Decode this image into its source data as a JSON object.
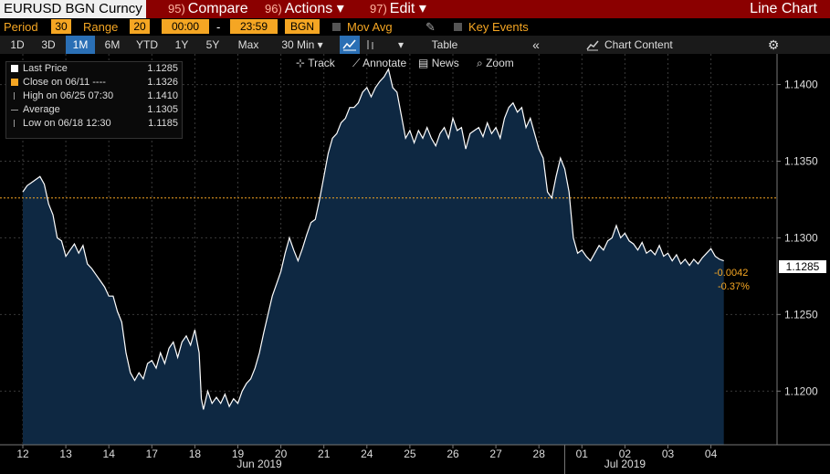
{
  "header": {
    "security": "EURUSD BGN Curncy",
    "compare": {
      "num": "95)",
      "label": "Compare"
    },
    "actions": {
      "num": "96)",
      "label": "Actions ▾"
    },
    "edit": {
      "num": "97)",
      "label": "Edit ▾"
    },
    "chart_type": "Line Chart"
  },
  "options": {
    "period_label": "Period",
    "period_value": "30",
    "range_label": "Range",
    "range_value": "20",
    "time_from": "00:00",
    "time_sep": "-",
    "time_to": "23:59",
    "source": "BGN",
    "mov_avg": "Mov Avg",
    "key_events": "Key Events"
  },
  "toolbar": {
    "ranges": [
      "1D",
      "3D",
      "1M",
      "6M",
      "YTD",
      "1Y",
      "5Y",
      "Max"
    ],
    "active_range": "1M",
    "interval": "30 Min ▾",
    "table_label": "Table",
    "collapse_icon": "«",
    "chart_content": "Chart Content",
    "gear_icon": "⚙"
  },
  "subtools": {
    "track": "Track",
    "annotate": "Annotate",
    "news": "News",
    "zoom": "Zoom"
  },
  "legend": [
    {
      "label": "Last Price",
      "value": "1.1285",
      "color": "#ffffff"
    },
    {
      "label": "Close on 06/11 ----",
      "value": "1.1326",
      "color": "#f5a623"
    },
    {
      "label": "High on 06/25 07:30",
      "value": "1.1410",
      "color": "#999999"
    },
    {
      "label": "Average",
      "value": "1.1305",
      "color": "#999999"
    },
    {
      "label": "Low on 06/18 12:30",
      "value": "1.1185",
      "color": "#999999"
    }
  ],
  "price_label": "1.1285",
  "change_abs": "-0.0042",
  "change_pct": "-0.37%",
  "chart_data": {
    "type": "area",
    "series_name": "Last Price",
    "ylim": [
      1.1165,
      1.142
    ],
    "yticks": [
      "1.1400",
      "1.1350",
      "1.1300",
      "1.1250",
      "1.1200"
    ],
    "ytick_values": [
      1.14,
      1.135,
      1.13,
      1.125,
      1.12
    ],
    "reference_line": 1.1326,
    "x_categories": [
      "12",
      "13",
      "14",
      "17",
      "18",
      "19",
      "20",
      "21",
      "24",
      "25",
      "26",
      "27",
      "28",
      "01",
      "02",
      "03",
      "04"
    ],
    "month_labels": [
      {
        "label": "Jun 2019",
        "at": 5.5
      },
      {
        "label": "Jul 2019",
        "at": 14
      }
    ],
    "month_divider_at": 12.6,
    "x_max": 16.6,
    "points": [
      [
        0,
        1.133
      ],
      [
        0.1,
        1.1334
      ],
      [
        0.2,
        1.1336
      ],
      [
        0.3,
        1.1338
      ],
      [
        0.4,
        1.134
      ],
      [
        0.5,
        1.1335
      ],
      [
        0.6,
        1.1322
      ],
      [
        0.7,
        1.1315
      ],
      [
        0.8,
        1.13
      ],
      [
        0.9,
        1.1298
      ],
      [
        1.0,
        1.1288
      ],
      [
        1.1,
        1.1292
      ],
      [
        1.2,
        1.1296
      ],
      [
        1.3,
        1.129
      ],
      [
        1.4,
        1.1295
      ],
      [
        1.5,
        1.1283
      ],
      [
        1.6,
        1.128
      ],
      [
        1.7,
        1.1276
      ],
      [
        1.8,
        1.1272
      ],
      [
        1.9,
        1.1268
      ],
      [
        2.0,
        1.1262
      ],
      [
        2.1,
        1.1262
      ],
      [
        2.2,
        1.1252
      ],
      [
        2.3,
        1.1245
      ],
      [
        2.4,
        1.1225
      ],
      [
        2.5,
        1.1212
      ],
      [
        2.6,
        1.1207
      ],
      [
        2.7,
        1.1212
      ],
      [
        2.8,
        1.1208
      ],
      [
        2.9,
        1.1218
      ],
      [
        3.0,
        1.122
      ],
      [
        3.1,
        1.1215
      ],
      [
        3.2,
        1.1225
      ],
      [
        3.3,
        1.1218
      ],
      [
        3.4,
        1.1228
      ],
      [
        3.5,
        1.1232
      ],
      [
        3.6,
        1.1222
      ],
      [
        3.7,
        1.1232
      ],
      [
        3.8,
        1.1236
      ],
      [
        3.9,
        1.123
      ],
      [
        4.0,
        1.124
      ],
      [
        4.1,
        1.1225
      ],
      [
        4.15,
        1.1195
      ],
      [
        4.2,
        1.1188
      ],
      [
        4.3,
        1.12
      ],
      [
        4.4,
        1.1192
      ],
      [
        4.5,
        1.1196
      ],
      [
        4.6,
        1.1192
      ],
      [
        4.7,
        1.1198
      ],
      [
        4.8,
        1.119
      ],
      [
        4.9,
        1.1195
      ],
      [
        5.0,
        1.1192
      ],
      [
        5.1,
        1.12
      ],
      [
        5.2,
        1.1205
      ],
      [
        5.3,
        1.1208
      ],
      [
        5.4,
        1.1215
      ],
      [
        5.5,
        1.1225
      ],
      [
        5.6,
        1.1238
      ],
      [
        5.7,
        1.125
      ],
      [
        5.8,
        1.1262
      ],
      [
        5.9,
        1.127
      ],
      [
        6.0,
        1.1278
      ],
      [
        6.1,
        1.129
      ],
      [
        6.2,
        1.13
      ],
      [
        6.3,
        1.1292
      ],
      [
        6.4,
        1.1285
      ],
      [
        6.5,
        1.1293
      ],
      [
        6.6,
        1.1302
      ],
      [
        6.7,
        1.131
      ],
      [
        6.8,
        1.1312
      ],
      [
        6.9,
        1.1325
      ],
      [
        7.0,
        1.134
      ],
      [
        7.1,
        1.1355
      ],
      [
        7.2,
        1.1365
      ],
      [
        7.3,
        1.1368
      ],
      [
        7.4,
        1.1375
      ],
      [
        7.5,
        1.1378
      ],
      [
        7.6,
        1.1385
      ],
      [
        7.7,
        1.1385
      ],
      [
        7.8,
        1.1388
      ],
      [
        7.9,
        1.1395
      ],
      [
        8.0,
        1.1398
      ],
      [
        8.1,
        1.1392
      ],
      [
        8.2,
        1.1398
      ],
      [
        8.3,
        1.1402
      ],
      [
        8.4,
        1.1405
      ],
      [
        8.5,
        1.141
      ],
      [
        8.6,
        1.1398
      ],
      [
        8.7,
        1.1395
      ],
      [
        8.8,
        1.138
      ],
      [
        8.9,
        1.1365
      ],
      [
        9.0,
        1.137
      ],
      [
        9.1,
        1.1362
      ],
      [
        9.2,
        1.137
      ],
      [
        9.3,
        1.1365
      ],
      [
        9.4,
        1.1372
      ],
      [
        9.5,
        1.1365
      ],
      [
        9.6,
        1.136
      ],
      [
        9.7,
        1.1368
      ],
      [
        9.8,
        1.1372
      ],
      [
        9.9,
        1.1365
      ],
      [
        10.0,
        1.1378
      ],
      [
        10.1,
        1.137
      ],
      [
        10.2,
        1.1372
      ],
      [
        10.3,
        1.1358
      ],
      [
        10.4,
        1.1368
      ],
      [
        10.5,
        1.137
      ],
      [
        10.6,
        1.1372
      ],
      [
        10.7,
        1.1366
      ],
      [
        10.8,
        1.1375
      ],
      [
        10.9,
        1.1368
      ],
      [
        11.0,
        1.1372
      ],
      [
        11.1,
        1.1365
      ],
      [
        11.2,
        1.1378
      ],
      [
        11.3,
        1.1385
      ],
      [
        11.4,
        1.1388
      ],
      [
        11.5,
        1.1382
      ],
      [
        11.6,
        1.1385
      ],
      [
        11.7,
        1.1372
      ],
      [
        11.8,
        1.1378
      ],
      [
        11.9,
        1.1368
      ],
      [
        12.0,
        1.1358
      ],
      [
        12.1,
        1.1352
      ],
      [
        12.2,
        1.133
      ],
      [
        12.3,
        1.1326
      ],
      [
        12.4,
        1.134
      ],
      [
        12.5,
        1.1352
      ],
      [
        12.6,
        1.1345
      ],
      [
        12.7,
        1.133
      ],
      [
        12.8,
        1.13
      ],
      [
        12.9,
        1.129
      ],
      [
        13.0,
        1.1292
      ],
      [
        13.1,
        1.1288
      ],
      [
        13.2,
        1.1285
      ],
      [
        13.3,
        1.129
      ],
      [
        13.4,
        1.1295
      ],
      [
        13.5,
        1.1292
      ],
      [
        13.6,
        1.1298
      ],
      [
        13.7,
        1.13
      ],
      [
        13.8,
        1.1308
      ],
      [
        13.9,
        1.13
      ],
      [
        14.0,
        1.1303
      ],
      [
        14.1,
        1.1298
      ],
      [
        14.2,
        1.1296
      ],
      [
        14.3,
        1.1292
      ],
      [
        14.4,
        1.1297
      ],
      [
        14.5,
        1.129
      ],
      [
        14.6,
        1.1292
      ],
      [
        14.7,
        1.1289
      ],
      [
        14.8,
        1.1295
      ],
      [
        14.9,
        1.1288
      ],
      [
        15.0,
        1.129
      ],
      [
        15.1,
        1.1285
      ],
      [
        15.2,
        1.1289
      ],
      [
        15.3,
        1.1283
      ],
      [
        15.4,
        1.1286
      ],
      [
        15.5,
        1.1282
      ],
      [
        15.6,
        1.1286
      ],
      [
        15.7,
        1.1283
      ],
      [
        15.8,
        1.1287
      ],
      [
        15.9,
        1.129
      ],
      [
        16.0,
        1.1293
      ],
      [
        16.1,
        1.1288
      ],
      [
        16.2,
        1.1286
      ],
      [
        16.3,
        1.1285
      ]
    ]
  }
}
